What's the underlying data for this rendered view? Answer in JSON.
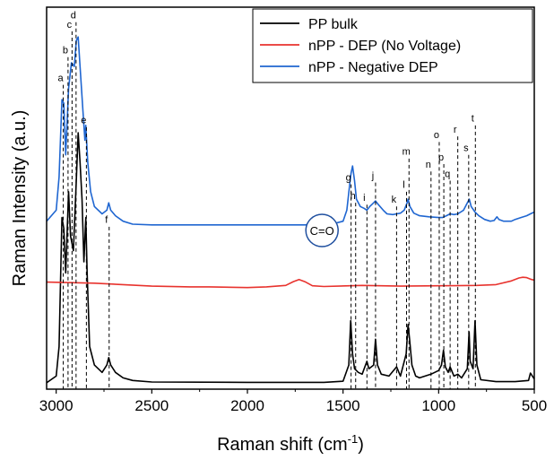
{
  "chart_data": {
    "type": "line",
    "xlabel": "Raman shift (cm",
    "xlabel_sup": "-1",
    "xlabel_close": ")",
    "ylabel": "Raman Intensity (a.u.)",
    "xlim": [
      3050,
      500
    ],
    "x_reversed": true,
    "ylim": [
      0,
      1
    ],
    "y_ticks_shown": false,
    "x_ticks": [
      3000,
      2500,
      2000,
      1500,
      1000,
      500
    ],
    "x_tick_labels": [
      "3000",
      "2500",
      "2000",
      "1500",
      "1000",
      "500"
    ],
    "grid": false,
    "legend_position": "top-right",
    "series": [
      {
        "name": "PP bulk",
        "color": "#000000",
        "points": [
          [
            3050,
            0.002
          ],
          [
            3000,
            0.02
          ],
          [
            2985,
            0.1
          ],
          [
            2970,
            0.45
          ],
          [
            2960,
            0.42
          ],
          [
            2950,
            0.3
          ],
          [
            2935,
            0.52
          ],
          [
            2925,
            0.4
          ],
          [
            2910,
            0.36
          ],
          [
            2895,
            0.55
          ],
          [
            2885,
            0.68
          ],
          [
            2875,
            0.6
          ],
          [
            2865,
            0.5
          ],
          [
            2855,
            0.33
          ],
          [
            2845,
            0.45
          ],
          [
            2838,
            0.3
          ],
          [
            2825,
            0.1
          ],
          [
            2800,
            0.05
          ],
          [
            2760,
            0.03
          ],
          [
            2735,
            0.05
          ],
          [
            2725,
            0.07
          ],
          [
            2715,
            0.05
          ],
          [
            2690,
            0.03
          ],
          [
            2650,
            0.015
          ],
          [
            2600,
            0.008
          ],
          [
            2500,
            0.004
          ],
          [
            2000,
            0.003
          ],
          [
            1600,
            0.003
          ],
          [
            1500,
            0.006
          ],
          [
            1470,
            0.05
          ],
          [
            1460,
            0.17
          ],
          [
            1450,
            0.08
          ],
          [
            1440,
            0.04
          ],
          [
            1420,
            0.03
          ],
          [
            1400,
            0.025
          ],
          [
            1375,
            0.06
          ],
          [
            1365,
            0.04
          ],
          [
            1340,
            0.05
          ],
          [
            1330,
            0.12
          ],
          [
            1320,
            0.05
          ],
          [
            1300,
            0.025
          ],
          [
            1260,
            0.02
          ],
          [
            1220,
            0.045
          ],
          [
            1200,
            0.02
          ],
          [
            1170,
            0.08
          ],
          [
            1160,
            0.16
          ],
          [
            1152,
            0.12
          ],
          [
            1140,
            0.05
          ],
          [
            1120,
            0.02
          ],
          [
            1100,
            0.015
          ],
          [
            1040,
            0.025
          ],
          [
            1000,
            0.035
          ],
          [
            985,
            0.05
          ],
          [
            975,
            0.09
          ],
          [
            965,
            0.045
          ],
          [
            950,
            0.03
          ],
          [
            940,
            0.045
          ],
          [
            920,
            0.02
          ],
          [
            900,
            0.025
          ],
          [
            880,
            0.015
          ],
          [
            850,
            0.04
          ],
          [
            841,
            0.14
          ],
          [
            835,
            0.06
          ],
          [
            820,
            0.04
          ],
          [
            810,
            0.17
          ],
          [
            800,
            0.05
          ],
          [
            780,
            0.01
          ],
          [
            700,
            0.005
          ],
          [
            600,
            0.005
          ],
          [
            530,
            0.008
          ],
          [
            520,
            0.028
          ],
          [
            510,
            0.02
          ],
          [
            500,
            0.012
          ]
        ]
      },
      {
        "name": "nPP - DEP (No Voltage)",
        "color": "#e8332e",
        "points": [
          [
            3050,
            0.275
          ],
          [
            2800,
            0.272
          ],
          [
            2500,
            0.264
          ],
          [
            2300,
            0.262
          ],
          [
            2200,
            0.262
          ],
          [
            2000,
            0.26
          ],
          [
            1900,
            0.262
          ],
          [
            1800,
            0.266
          ],
          [
            1760,
            0.276
          ],
          [
            1730,
            0.282
          ],
          [
            1700,
            0.276
          ],
          [
            1660,
            0.265
          ],
          [
            1600,
            0.263
          ],
          [
            1400,
            0.266
          ],
          [
            1200,
            0.264
          ],
          [
            1000,
            0.265
          ],
          [
            800,
            0.266
          ],
          [
            700,
            0.268
          ],
          [
            620,
            0.278
          ],
          [
            580,
            0.286
          ],
          [
            560,
            0.288
          ],
          [
            540,
            0.287
          ],
          [
            520,
            0.283
          ],
          [
            500,
            0.28
          ]
        ]
      },
      {
        "name": "nPP - Negative DEP",
        "color": "#1f66d1",
        "points": [
          [
            3050,
            0.44
          ],
          [
            3000,
            0.47
          ],
          [
            2985,
            0.56
          ],
          [
            2970,
            0.77
          ],
          [
            2960,
            0.76
          ],
          [
            2950,
            0.62
          ],
          [
            2935,
            0.8
          ],
          [
            2920,
            0.87
          ],
          [
            2905,
            0.86
          ],
          [
            2895,
            0.93
          ],
          [
            2885,
            0.94
          ],
          [
            2875,
            0.86
          ],
          [
            2860,
            0.74
          ],
          [
            2850,
            0.66
          ],
          [
            2845,
            0.7
          ],
          [
            2835,
            0.6
          ],
          [
            2820,
            0.52
          ],
          [
            2800,
            0.48
          ],
          [
            2760,
            0.46
          ],
          [
            2735,
            0.47
          ],
          [
            2725,
            0.49
          ],
          [
            2715,
            0.47
          ],
          [
            2690,
            0.455
          ],
          [
            2650,
            0.44
          ],
          [
            2600,
            0.432
          ],
          [
            2500,
            0.43
          ],
          [
            2000,
            0.43
          ],
          [
            1700,
            0.43
          ],
          [
            1660,
            0.432
          ],
          [
            1640,
            0.44
          ],
          [
            1632,
            0.448
          ],
          [
            1625,
            0.437
          ],
          [
            1610,
            0.433
          ],
          [
            1600,
            0.437
          ],
          [
            1592,
            0.447
          ],
          [
            1585,
            0.436
          ],
          [
            1560,
            0.432
          ],
          [
            1500,
            0.44
          ],
          [
            1480,
            0.47
          ],
          [
            1465,
            0.54
          ],
          [
            1458,
            0.57
          ],
          [
            1450,
            0.59
          ],
          [
            1440,
            0.55
          ],
          [
            1430,
            0.5
          ],
          [
            1410,
            0.48
          ],
          [
            1390,
            0.475
          ],
          [
            1375,
            0.47
          ],
          [
            1360,
            0.48
          ],
          [
            1340,
            0.49
          ],
          [
            1330,
            0.495
          ],
          [
            1315,
            0.485
          ],
          [
            1290,
            0.47
          ],
          [
            1270,
            0.46
          ],
          [
            1240,
            0.458
          ],
          [
            1220,
            0.46
          ],
          [
            1200,
            0.462
          ],
          [
            1180,
            0.47
          ],
          [
            1165,
            0.49
          ],
          [
            1160,
            0.5
          ],
          [
            1150,
            0.48
          ],
          [
            1130,
            0.462
          ],
          [
            1100,
            0.455
          ],
          [
            1050,
            0.452
          ],
          [
            1000,
            0.45
          ],
          [
            980,
            0.45
          ],
          [
            960,
            0.455
          ],
          [
            940,
            0.46
          ],
          [
            920,
            0.458
          ],
          [
            900,
            0.46
          ],
          [
            870,
            0.47
          ],
          [
            850,
            0.49
          ],
          [
            840,
            0.5
          ],
          [
            830,
            0.48
          ],
          [
            810,
            0.465
          ],
          [
            790,
            0.455
          ],
          [
            760,
            0.445
          ],
          [
            730,
            0.44
          ],
          [
            710,
            0.442
          ],
          [
            695,
            0.452
          ],
          [
            685,
            0.445
          ],
          [
            660,
            0.44
          ],
          [
            620,
            0.44
          ],
          [
            600,
            0.445
          ],
          [
            570,
            0.45
          ],
          [
            540,
            0.455
          ],
          [
            520,
            0.46
          ],
          [
            500,
            0.465
          ]
        ]
      }
    ],
    "peak_markers": [
      {
        "label": "a",
        "x": 2963,
        "ylabel": 0.83,
        "ytop": 0.81
      },
      {
        "label": "b",
        "x": 2938,
        "ylabel": 0.905,
        "ytop": 0.885
      },
      {
        "label": "c",
        "x": 2917,
        "ylabel": 0.975,
        "ytop": 0.955
      },
      {
        "label": "d",
        "x": 2896,
        "ylabel": 1.0,
        "ytop": 0.98
      },
      {
        "label": "e",
        "x": 2842,
        "ylabel": 0.715,
        "ytop": 0.695
      },
      {
        "label": "f",
        "x": 2723,
        "ylabel": 0.445,
        "ytop": 0.425
      },
      {
        "label": "g",
        "x": 1458,
        "ylabel": 0.56,
        "ytop": 0.54
      },
      {
        "label": "h",
        "x": 1434,
        "ylabel": 0.51,
        "ytop": 0.49
      },
      {
        "label": "i",
        "x": 1375,
        "ylabel": 0.505,
        "ytop": 0.485
      },
      {
        "label": "j",
        "x": 1330,
        "ylabel": 0.565,
        "ytop": 0.545
      },
      {
        "label": "k",
        "x": 1220,
        "ylabel": 0.5,
        "ytop": 0.48
      },
      {
        "label": "l",
        "x": 1168,
        "ylabel": 0.54,
        "ytop": 0.52
      },
      {
        "label": "m",
        "x": 1155,
        "ylabel": 0.63,
        "ytop": 0.61
      },
      {
        "label": "n",
        "x": 1040,
        "ylabel": 0.595,
        "ytop": 0.575
      },
      {
        "label": "o",
        "x": 997,
        "ylabel": 0.675,
        "ytop": 0.655
      },
      {
        "label": "p",
        "x": 973,
        "ylabel": 0.615,
        "ytop": 0.595
      },
      {
        "label": "q",
        "x": 940,
        "ylabel": 0.57,
        "ytop": 0.55
      },
      {
        "label": "r",
        "x": 900,
        "ylabel": 0.69,
        "ytop": 0.67
      },
      {
        "label": "s",
        "x": 843,
        "ylabel": 0.64,
        "ytop": 0.62
      },
      {
        "label": "t",
        "x": 808,
        "ylabel": 0.72,
        "ytop": 0.7
      }
    ],
    "annotation": {
      "label": "C=O",
      "x": 1610,
      "y": 0.415,
      "circle_color": "#1f4f9f"
    }
  }
}
